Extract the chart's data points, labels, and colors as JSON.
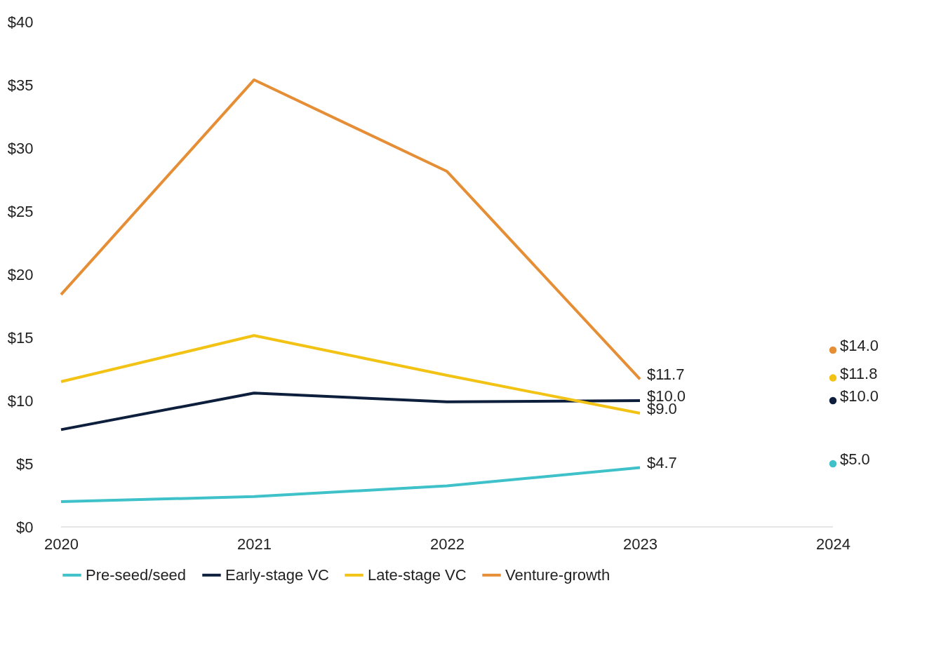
{
  "chart_data": {
    "type": "line",
    "categories": [
      "2020",
      "2021",
      "2022",
      "2023",
      "2024"
    ],
    "ylim": [
      0,
      40
    ],
    "yticks": [
      {
        "value": 0,
        "label": "$0"
      },
      {
        "value": 5,
        "label": "$5"
      },
      {
        "value": 10,
        "label": "$10"
      },
      {
        "value": 15,
        "label": "$15"
      },
      {
        "value": 20,
        "label": "$20"
      },
      {
        "value": 25,
        "label": "$25"
      },
      {
        "value": 30,
        "label": "$30"
      },
      {
        "value": 35,
        "label": "$35"
      },
      {
        "value": 40,
        "label": "$40"
      }
    ],
    "grid": false,
    "legend": "bottom",
    "marker": "none",
    "line_style": "solid",
    "series": [
      {
        "name": "Pre-seed/seed",
        "color": "#3ec1c9",
        "values": [
          2.0,
          2.4,
          3.25,
          4.7,
          null
        ],
        "value_labels": [
          null,
          null,
          null,
          "$4.7",
          null
        ]
      },
      {
        "name": "Early-stage VC",
        "color": "#0d1f3c",
        "values": [
          7.7,
          10.6,
          9.9,
          10.0,
          null
        ],
        "value_labels": [
          null,
          null,
          null,
          "$10.0",
          null
        ]
      },
      {
        "name": "Late-stage VC",
        "color": "#f2c314",
        "values": [
          11.5,
          15.15,
          12.0,
          9.0,
          null
        ],
        "value_labels": [
          null,
          null,
          null,
          "$9.0",
          null
        ]
      },
      {
        "name": "Venture-growth",
        "color": "#e58e35",
        "values": [
          18.4,
          35.4,
          28.15,
          11.7,
          null
        ],
        "value_labels": [
          null,
          null,
          null,
          "$11.7",
          null
        ]
      },
      {
        "type": "scatter",
        "marker": "circle",
        "color": "#3ec1c9",
        "values": [
          null,
          null,
          null,
          null,
          5.0
        ],
        "value_labels": [
          null,
          null,
          null,
          null,
          "$5.0"
        ]
      },
      {
        "type": "scatter",
        "marker": "circle",
        "color": "#0d1f3c",
        "values": [
          null,
          null,
          null,
          null,
          10.0
        ],
        "value_labels": [
          null,
          null,
          null,
          null,
          "$10.0"
        ]
      },
      {
        "type": "scatter",
        "marker": "circle",
        "color": "#f2c314",
        "values": [
          null,
          null,
          null,
          null,
          11.8
        ],
        "value_labels": [
          null,
          null,
          null,
          null,
          "$11.8"
        ]
      },
      {
        "type": "scatter",
        "marker": "circle",
        "color": "#e58e35",
        "values": [
          null,
          null,
          null,
          null,
          14.0
        ],
        "value_labels": [
          null,
          null,
          null,
          null,
          "$14.0"
        ]
      }
    ]
  }
}
